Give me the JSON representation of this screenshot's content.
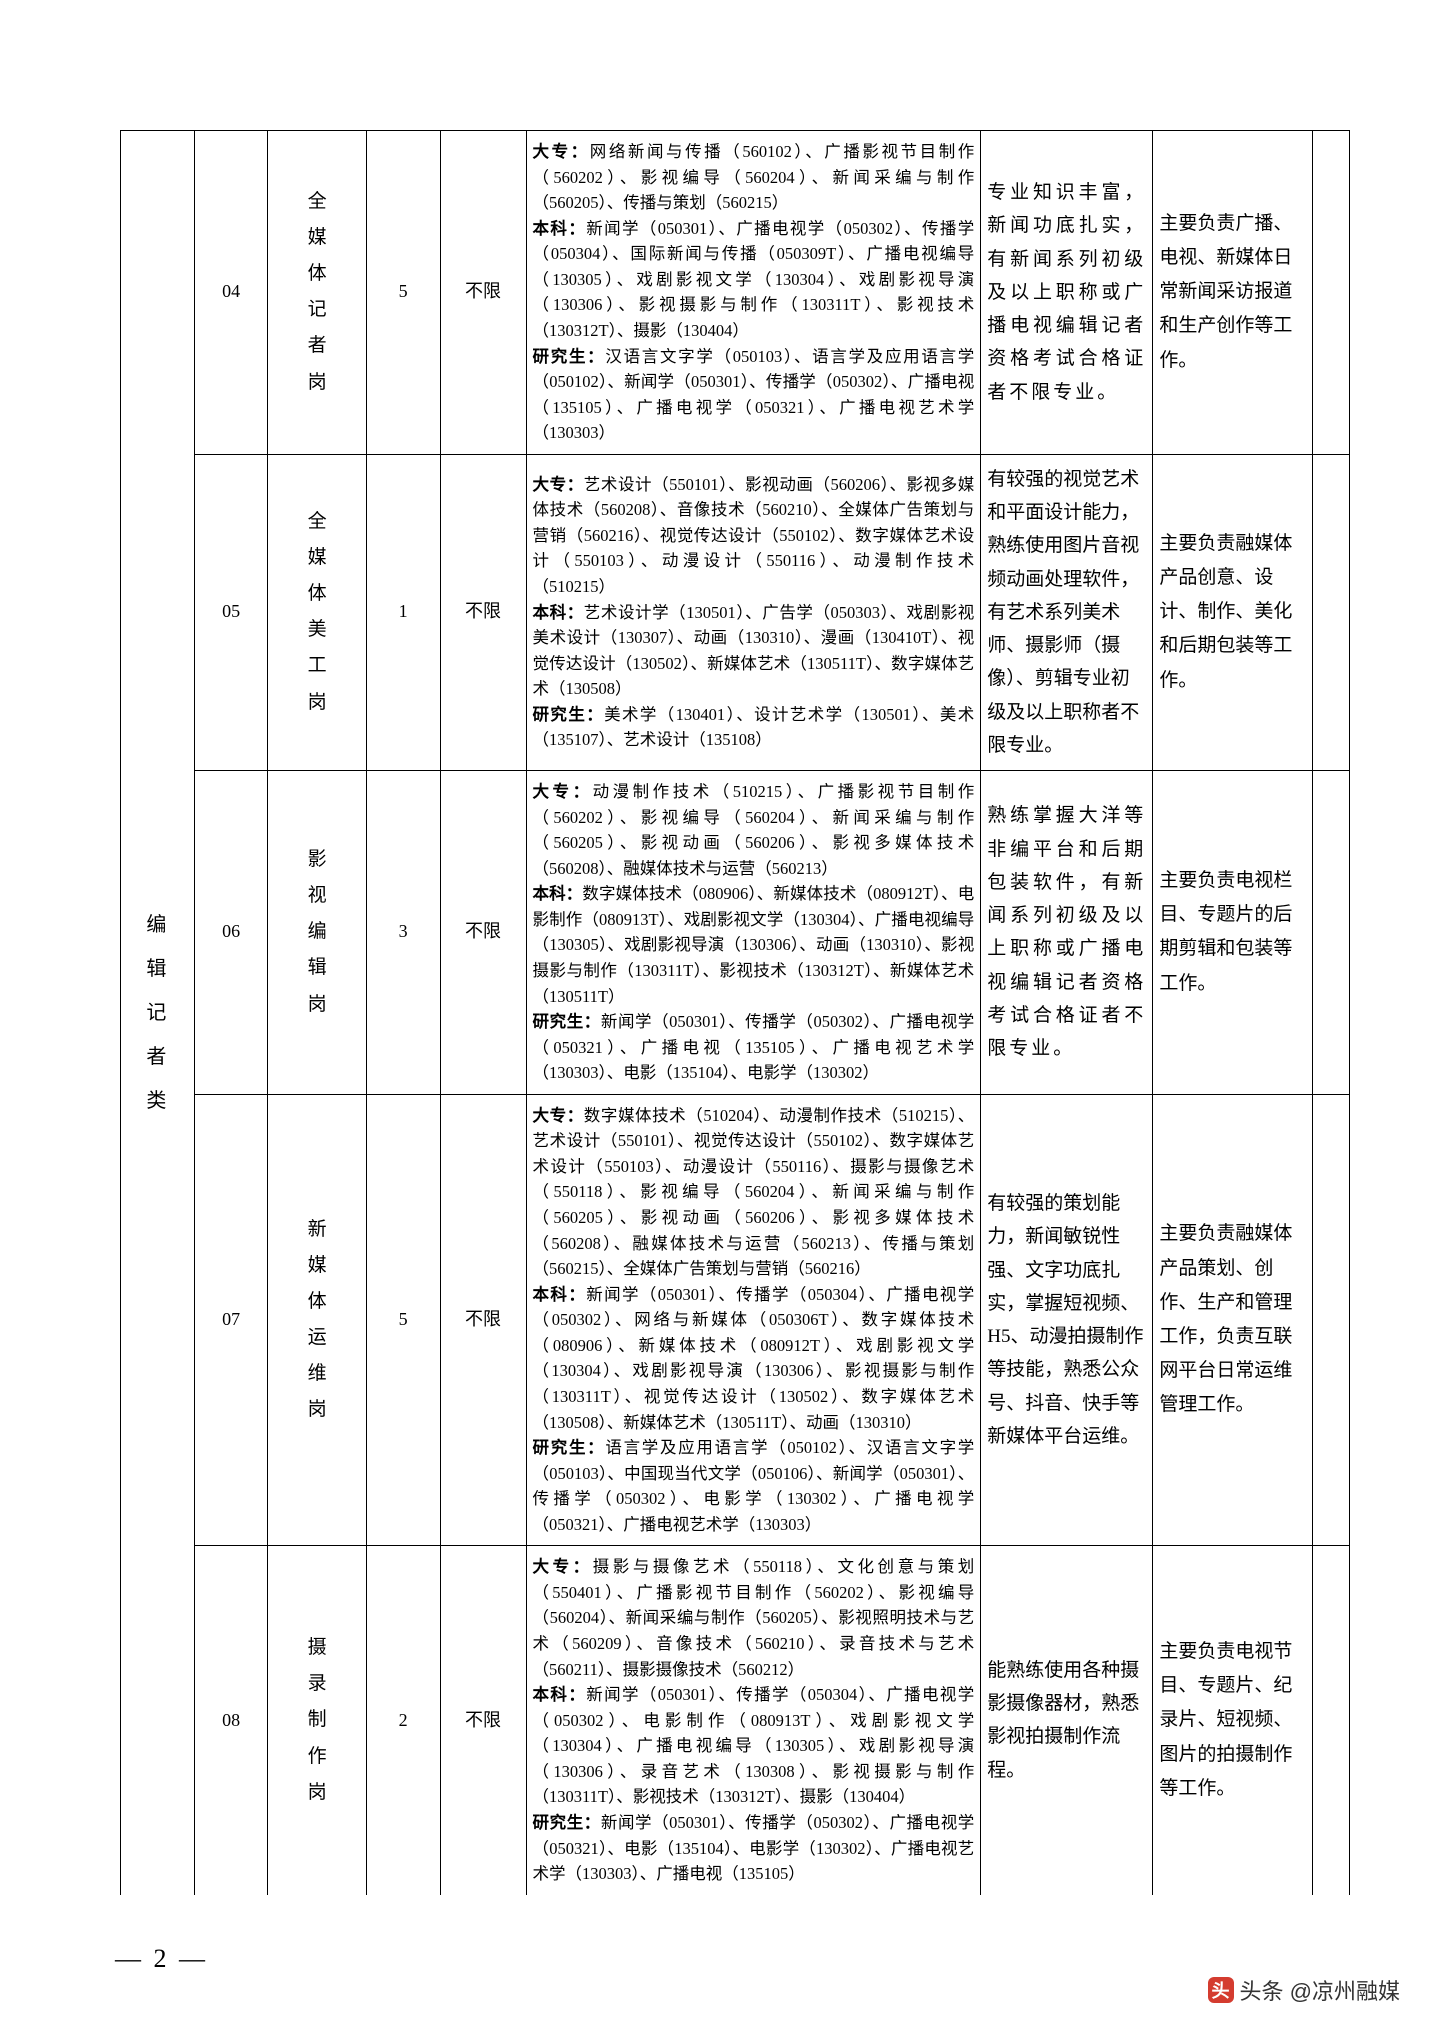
{
  "category_label": "编辑记者类",
  "page_number": "— 2 —",
  "watermark_text": "头条 @凉州融媒",
  "cols": {
    "w_cat": "6%",
    "w_code": "6%",
    "w_post": "8%",
    "w_qty": "6%",
    "w_edu": "7%",
    "w_major": "37%",
    "w_req": "14%",
    "w_duty": "13%",
    "w_blank": "3%"
  },
  "rows": [
    {
      "code": "04",
      "post": "全媒体记者岗",
      "qty": "5",
      "edu": "不限",
      "major_dz": "网络新闻与传播（560102）、广播影视节目制作（560202）、影视编导（560204）、新闻采编与制作（560205）、传播与策划（560215）",
      "major_bk": "新闻学（050301）、广播电视学（050302）、传播学（050304）、国际新闻与传播（050309T）、广播电视编导（130305）、戏剧影视文学（130304）、戏剧影视导演（130306）、影视摄影与制作（130311T）、影视技术（130312T）、摄影（130404）",
      "major_yjs": "汉语言文字学（050103）、语言学及应用语言学（050102）、新闻学（050301）、传播学（050302）、广播电视（135105）、广播电视学（050321）、广播电视艺术学（130303）",
      "req": "专业知识丰富，新闻功底扎实，有新闻系列初级及以上职称或广播电视编辑记者资格考试合格证者不限专业。",
      "duty": "主要负责广播、电视、新媒体日常新闻采访报道和生产创作等工作。"
    },
    {
      "code": "05",
      "post": "全媒体美工岗",
      "qty": "1",
      "edu": "不限",
      "major_dz": "艺术设计（550101）、影视动画（560206）、影视多媒体技术（560208）、音像技术（560210）、全媒体广告策划与营销（560216）、视觉传达设计（550102）、数字媒体艺术设计（550103）、动漫设计（550116）、动漫制作技术（510215）",
      "major_bk": "艺术设计学（130501）、广告学（050303）、戏剧影视美术设计（130307）、动画（130310）、漫画（130410T）、视觉传达设计（130502）、新媒体艺术（130511T）、数字媒体艺术（130508）",
      "major_yjs": "美术学（130401）、设计艺术学（130501）、美术（135107）、艺术设计（135108）",
      "req": "有较强的视觉艺术和平面设计能力，熟练使用图片音视频动画处理软件，有艺术系列美术师、摄影师（摄像）、剪辑专业初级及以上职称者不限专业。",
      "duty": "主要负责融媒体产品创意、设计、制作、美化和后期包装等工作。"
    },
    {
      "code": "06",
      "post": "影视编辑岗",
      "qty": "3",
      "edu": "不限",
      "major_dz": "动漫制作技术（510215）、广播影视节目制作（560202）、影视编导（560204）、新闻采编与制作（560205）、影视动画（560206）、影视多媒体技术（560208）、融媒体技术与运营（560213）",
      "major_bk": "数字媒体技术（080906）、新媒体技术（080912T）、电影制作（080913T）、戏剧影视文学（130304）、广播电视编导（130305）、戏剧影视导演（130306）、动画（130310）、影视摄影与制作（130311T）、影视技术（130312T）、新媒体艺术（130511T）",
      "major_yjs": "新闻学（050301）、传播学（050302）、广播电视学（050321）、广播电视（135105）、广播电视艺术学（130303）、电影（135104）、电影学（130302）",
      "req": "熟练掌握大洋等非编平台和后期包装软件，有新闻系列初级及以上职称或广播电视编辑记者资格考试合格证者不限专业。",
      "duty": "主要负责电视栏目、专题片的后期剪辑和包装等工作。"
    },
    {
      "code": "07",
      "post": "新媒体运维岗",
      "qty": "5",
      "edu": "不限",
      "major_dz": "数字媒体技术（510204）、动漫制作技术（510215）、艺术设计（550101）、视觉传达设计（550102）、数字媒体艺术设计（550103）、动漫设计（550116）、摄影与摄像艺术（550118）、影视编导（560204）、新闻采编与制作（560205）、影视动画（560206）、影视多媒体技术（560208）、融媒体技术与运营（560213）、传播与策划（560215）、全媒体广告策划与营销（560216）",
      "major_bk": "新闻学（050301）、传播学（050304）、广播电视学（050302）、网络与新媒体（050306T）、数字媒体技术（080906）、新媒体技术（080912T）、戏剧影视文学（130304）、戏剧影视导演（130306）、影视摄影与制作（130311T）、视觉传达设计（130502）、数字媒体艺术（130508）、新媒体艺术（130511T）、动画（130310）",
      "major_yjs": "语言学及应用语言学（050102）、汉语言文字学（050103）、中国现当代文学（050106）、新闻学（050301）、传播学（050302）、电影学（130302）、广播电视学（050321）、广播电视艺术学（130303）",
      "req": "有较强的策划能力，新闻敏锐性强、文字功底扎实，掌握短视频、H5、动漫拍摄制作等技能，熟悉公众号、抖音、快手等新媒体平台运维。",
      "duty": "主要负责融媒体产品策划、创作、生产和管理工作，负责互联网平台日常运维管理工作。"
    },
    {
      "code": "08",
      "post": "摄录制作岗",
      "qty": "2",
      "edu": "不限",
      "major_dz": "摄影与摄像艺术（550118）、文化创意与策划（550401）、广播影视节目制作（560202）、影视编导（560204）、新闻采编与制作（560205）、影视照明技术与艺术（560209）、音像技术（560210）、录音技术与艺术（560211）、摄影摄像技术（560212）",
      "major_bk": "新闻学（050301）、传播学（050304）、广播电视学（050302）、电影制作（080913T）、戏剧影视文学（130304）、广播电视编导（130305）、戏剧影视导演（130306）、录音艺术（130308）、影视摄影与制作（130311T）、影视技术（130312T）、摄影（130404）",
      "major_yjs": "新闻学（050301）、传播学（050302）、广播电视学（050321）、电影（135104）、电影学（130302）、广播电视艺术学（130303）、广播电视（135105）",
      "req": "能熟练使用各种摄影摄像器材，熟悉影视拍摄制作流程。",
      "duty": "主要负责电视节目、专题片、纪录片、短视频、图片的拍摄制作等工作。"
    }
  ]
}
